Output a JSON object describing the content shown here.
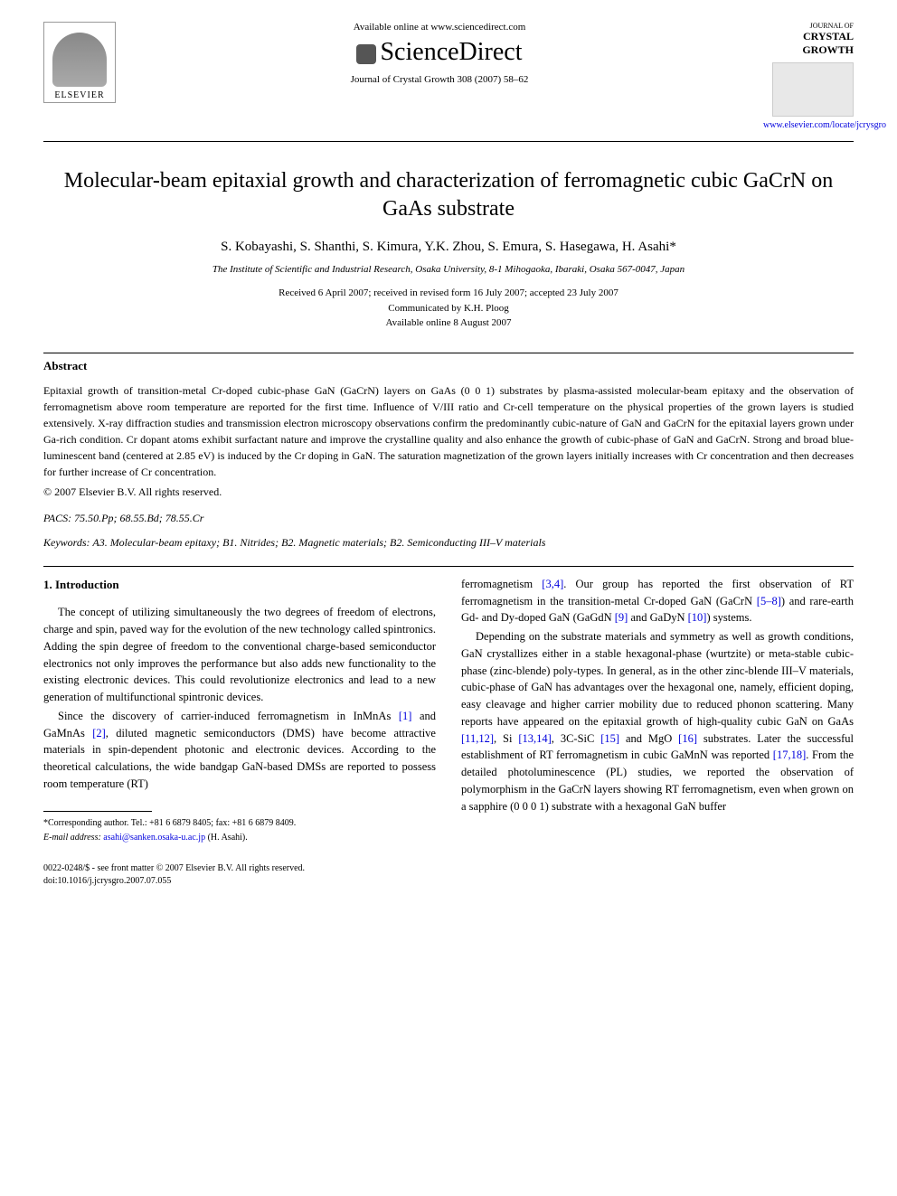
{
  "header": {
    "available_online": "Available online at www.sciencedirect.com",
    "sciencedirect": "ScienceDirect",
    "publisher": "ELSEVIER",
    "citation": "Journal of Crystal Growth 308 (2007) 58–62",
    "journal_name_small": "JOURNAL OF",
    "journal_name_bold": "CRYSTAL GROWTH",
    "journal_url": "www.elsevier.com/locate/jcrysgro"
  },
  "article": {
    "title": "Molecular-beam epitaxial growth and characterization of ferromagnetic cubic GaCrN on GaAs substrate",
    "authors": "S. Kobayashi, S. Shanthi, S. Kimura, Y.K. Zhou, S. Emura, S. Hasegawa, H. Asahi*",
    "affiliation": "The Institute of Scientific and Industrial Research, Osaka University, 8-1 Mihogaoka, Ibaraki, Osaka 567-0047, Japan",
    "received": "Received 6 April 2007; received in revised form 16 July 2007; accepted 23 July 2007",
    "communicated": "Communicated by K.H. Ploog",
    "available": "Available online 8 August 2007"
  },
  "abstract": {
    "heading": "Abstract",
    "text": "Epitaxial growth of transition-metal Cr-doped cubic-phase GaN (GaCrN) layers on GaAs (0 0 1) substrates by plasma-assisted molecular-beam epitaxy and the observation of ferromagnetism above room temperature are reported for the first time. Influence of V/III ratio and Cr-cell temperature on the physical properties of the grown layers is studied extensively. X-ray diffraction studies and transmission electron microscopy observations confirm the predominantly cubic-nature of GaN and GaCrN for the epitaxial layers grown under Ga-rich condition. Cr dopant atoms exhibit surfactant nature and improve the crystalline quality and also enhance the growth of cubic-phase of GaN and GaCrN. Strong and broad blue-luminescent band (centered at 2.85 eV) is induced by the Cr doping in GaN. The saturation magnetization of the grown layers initially increases with Cr concentration and then decreases for further increase of Cr concentration.",
    "copyright": "© 2007 Elsevier B.V. All rights reserved."
  },
  "pacs": {
    "label": "PACS:",
    "codes": "75.50.Pp; 68.55.Bd; 78.55.Cr"
  },
  "keywords": {
    "label": "Keywords:",
    "text": "A3. Molecular-beam epitaxy; B1. Nitrides; B2. Magnetic materials; B2. Semiconducting III–V materials"
  },
  "body": {
    "section_heading": "1. Introduction",
    "col1_p1": "The concept of utilizing simultaneously the two degrees of freedom of electrons, charge and spin, paved way for the evolution of the new technology called spintronics. Adding the spin degree of freedom to the conventional charge-based semiconductor electronics not only improves the performance but also adds new functionality to the existing electronic devices. This could revolutionize electronics and lead to a new generation of multifunctional spintronic devices.",
    "col1_p2_a": "Since the discovery of carrier-induced ferromagnetism in InMnAs ",
    "ref1": "[1]",
    "col1_p2_b": " and GaMnAs ",
    "ref2": "[2]",
    "col1_p2_c": ", diluted magnetic semiconductors (DMS) have become attractive materials in spin-dependent photonic and electronic devices. According to the theoretical calculations, the wide bandgap GaN-based DMSs are reported to possess room temperature (RT)",
    "col2_p1_a": "ferromagnetism ",
    "ref34": "[3,4]",
    "col2_p1_b": ". Our group has reported the first observation of RT ferromagnetism in the transition-metal Cr-doped GaN (GaCrN ",
    "ref58": "[5–8]",
    "col2_p1_c": ") and rare-earth Gd- and Dy-doped GaN (GaGdN ",
    "ref9": "[9]",
    "col2_p1_d": " and GaDyN ",
    "ref10": "[10]",
    "col2_p1_e": ") systems.",
    "col2_p2_a": "Depending on the substrate materials and symmetry as well as growth conditions, GaN crystallizes either in a stable hexagonal-phase (wurtzite) or meta-stable cubic-phase (zinc-blende) poly-types. In general, as in the other zinc-blende III–V materials, cubic-phase of GaN has advantages over the hexagonal one, namely, efficient doping, easy cleavage and higher carrier mobility due to reduced phonon scattering. Many reports have appeared on the epitaxial growth of high-quality cubic GaN on GaAs ",
    "ref1112": "[11,12]",
    "col2_p2_b": ", Si ",
    "ref1314": "[13,14]",
    "col2_p2_c": ", 3C-SiC ",
    "ref15": "[15]",
    "col2_p2_d": " and MgO ",
    "ref16": "[16]",
    "col2_p2_e": " substrates. Later the successful establishment of RT ferromagnetism in cubic GaMnN was reported ",
    "ref1718": "[17,18]",
    "col2_p2_f": ". From the detailed photoluminescence (PL) studies, we reported the observation of polymorphism in the GaCrN layers showing RT ferromagnetism, even when grown on a sapphire (0 0 0 1) substrate with a hexagonal GaN buffer"
  },
  "footnote": {
    "corresponding": "*Corresponding author. Tel.: +81 6 6879 8405; fax: +81 6 6879 8409.",
    "email_label": "E-mail address:",
    "email": "asahi@sanken.osaka-u.ac.jp",
    "email_name": "(H. Asahi)."
  },
  "footer": {
    "issn": "0022-0248/$ - see front matter © 2007 Elsevier B.V. All rights reserved.",
    "doi": "doi:10.1016/j.jcrysgro.2007.07.055"
  },
  "colors": {
    "link": "#0000dd",
    "text": "#000000",
    "background": "#ffffff"
  }
}
